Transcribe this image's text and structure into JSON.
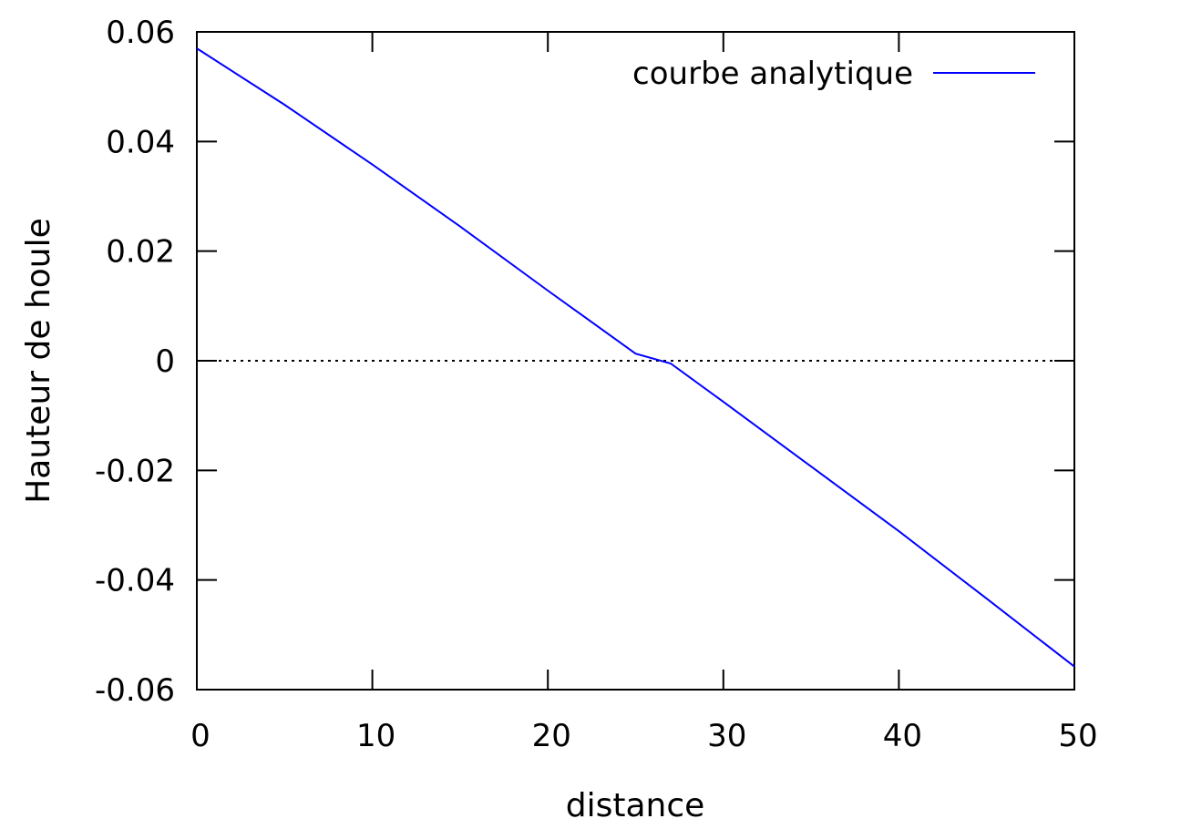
{
  "chart_data": {
    "type": "line",
    "title": "",
    "xlabel": "distance",
    "ylabel": "Hauteur de houle",
    "xlim": [
      0,
      50
    ],
    "ylim": [
      -0.06,
      0.06
    ],
    "x_ticks": [
      0,
      10,
      20,
      30,
      40,
      50
    ],
    "x_tick_labels": [
      "0",
      "10",
      "20",
      "30",
      "40",
      "50"
    ],
    "y_ticks": [
      -0.06,
      -0.04,
      -0.02,
      0,
      0.02,
      0.04,
      0.06
    ],
    "y_tick_labels": [
      "-0.06",
      "-0.04",
      "-0.02",
      "0",
      "0.02",
      "0.04",
      "0.06"
    ],
    "grid": false,
    "zero_line": {
      "y": 0,
      "style": "dotted",
      "color": "#000000"
    },
    "legend": {
      "position": "top-right"
    },
    "series": [
      {
        "name": "courbe analytique",
        "color": "#0000ff",
        "x": [
          0,
          5,
          10,
          15,
          20,
          25,
          27,
          30,
          35,
          40,
          45,
          50
        ],
        "y": [
          0.057,
          0.0467,
          0.0358,
          0.0245,
          0.0128,
          0.0013,
          -0.0005,
          -0.0075,
          -0.0193,
          -0.0311,
          -0.0434,
          -0.0558
        ]
      }
    ]
  }
}
